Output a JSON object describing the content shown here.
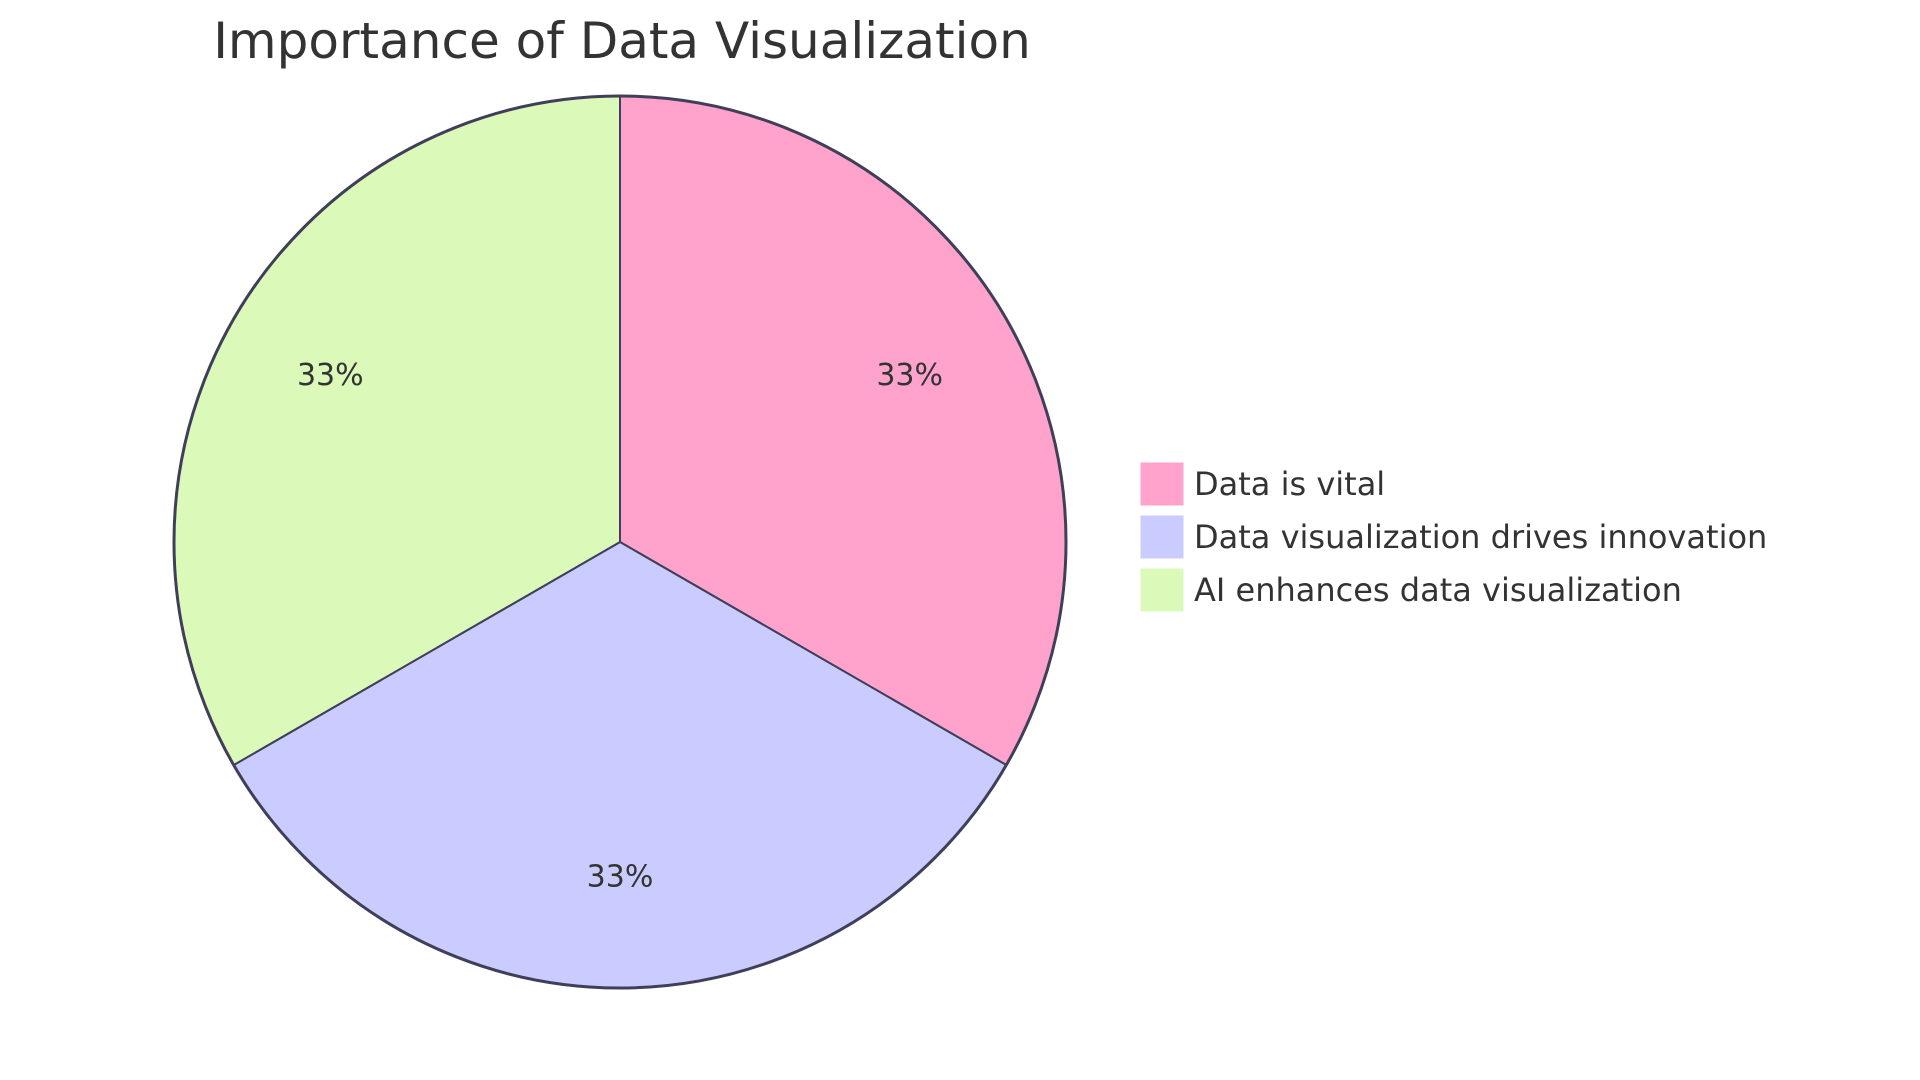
{
  "chart_data": {
    "type": "pie",
    "title": "Importance of Data Visualization",
    "slices": [
      {
        "label": "Data is vital",
        "value": 33,
        "display": "33%",
        "color": "#FFA3CD"
      },
      {
        "label": "Data visualization drives innovation",
        "value": 33,
        "display": "33%",
        "color": "#CACBFF"
      },
      {
        "label": "AI enhances data visualization",
        "value": 33,
        "display": "33%",
        "color": "#DBFABA"
      }
    ],
    "legend_position": "right",
    "stroke_color": "#3F3F5A"
  }
}
